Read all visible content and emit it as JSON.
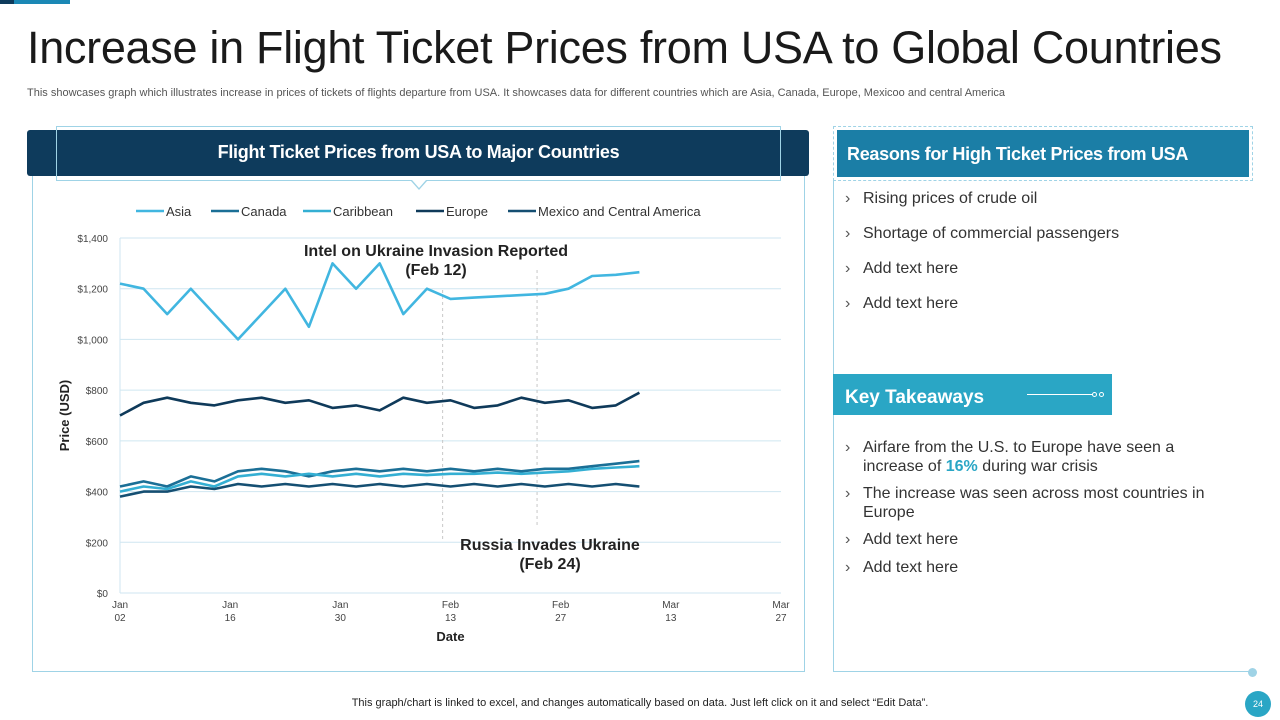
{
  "title": "Increase in Flight Ticket Prices from USA to Global Countries",
  "subtitle": "This showcases graph which illustrates increase in prices of tickets of flights departure from USA. It showcases data for different countries which are Asia, Canada, Europe, Mexicoo and central America",
  "chart_panel": {
    "header": "Flight Ticket Prices from USA to Major Countries"
  },
  "chart_data": {
    "type": "line",
    "title": "Flight Ticket Prices from USA to Major Countries",
    "xlabel": "Date",
    "ylabel": "Price (USD)",
    "ylim": [
      0,
      1400
    ],
    "yticks": [
      0,
      200,
      400,
      600,
      800,
      1000,
      1200,
      1400
    ],
    "ytick_labels": [
      "$0",
      "$200",
      "$400",
      "$600",
      "$800",
      "$1,000",
      "$1,200",
      "$1,400"
    ],
    "xlim": [
      0,
      84
    ],
    "xticks": [
      {
        "x": 0,
        "l1": "Jan",
        "l2": "02"
      },
      {
        "x": 14,
        "l1": "Jan",
        "l2": "16"
      },
      {
        "x": 28,
        "l1": "Jan",
        "l2": "30"
      },
      {
        "x": 42,
        "l1": "Feb",
        "l2": "13"
      },
      {
        "x": 56,
        "l1": "Feb",
        "l2": "27"
      },
      {
        "x": 70,
        "l1": "Mar",
        "l2": "13"
      },
      {
        "x": 84,
        "l1": "Mar",
        "l2": "27"
      }
    ],
    "x": [
      0,
      3,
      6,
      9,
      12,
      15,
      18,
      21,
      24,
      27,
      30,
      33,
      36,
      39,
      42,
      45,
      48,
      51,
      54,
      57,
      60,
      63,
      66
    ],
    "series": [
      {
        "name": "Asia",
        "color": "#41b6e0",
        "values": [
          1220,
          1200,
          1100,
          1200,
          1100,
          1000,
          1100,
          1200,
          1050,
          1300,
          1200,
          1300,
          1100,
          1200,
          1160,
          1165,
          1170,
          1175,
          1180,
          1200,
          1250,
          1255,
          1265
        ]
      },
      {
        "name": "Canada",
        "color": "#1b6f96",
        "values": [
          420,
          440,
          420,
          460,
          440,
          480,
          490,
          480,
          460,
          480,
          490,
          480,
          490,
          480,
          490,
          480,
          490,
          480,
          490,
          490,
          500,
          510,
          520
        ]
      },
      {
        "name": "Caribbean",
        "color": "#34afd3",
        "values": [
          400,
          420,
          410,
          440,
          420,
          460,
          470,
          460,
          470,
          460,
          470,
          460,
          470,
          465,
          470,
          470,
          475,
          470,
          475,
          480,
          490,
          495,
          500
        ]
      },
      {
        "name": "Europe",
        "color": "#0f3a5a",
        "values": [
          700,
          750,
          770,
          750,
          740,
          760,
          770,
          750,
          760,
          730,
          740,
          720,
          770,
          750,
          760,
          730,
          740,
          770,
          750,
          760,
          730,
          740,
          790
        ]
      },
      {
        "name": "Mexico and Central America",
        "color": "#154f72",
        "values": [
          380,
          400,
          400,
          420,
          410,
          430,
          420,
          430,
          420,
          430,
          420,
          430,
          420,
          430,
          420,
          430,
          420,
          430,
          420,
          430,
          420,
          430,
          420
        ]
      }
    ],
    "annotations": [
      {
        "x": 41,
        "text1": "Intel on Ukraine Invasion Reported",
        "text2": "(Feb 12)",
        "position": "top"
      },
      {
        "x": 53,
        "text1": "Russia Invades Ukraine",
        "text2": "(Feb 24)",
        "position": "bottom"
      }
    ]
  },
  "reasons": {
    "title": "Reasons for High Ticket Prices from USA",
    "items": [
      "Rising prices of crude oil",
      "Shortage of commercial passengers",
      "Add text here",
      "Add text here"
    ]
  },
  "takeaways": {
    "title": "Key Takeaways",
    "item1_pre": "Airfare from the U.S. to Europe have seen a increase of ",
    "item1_highlight": "16%",
    "item1_post": " during war crisis",
    "item2": "The increase was seen across most countries in Europe",
    "item3": "Add text here",
    "item4": "Add text here"
  },
  "footer": "This graph/chart is linked to excel, and changes automatically based on data. Just left click on it and select “Edit Data”.",
  "page_number": "24"
}
